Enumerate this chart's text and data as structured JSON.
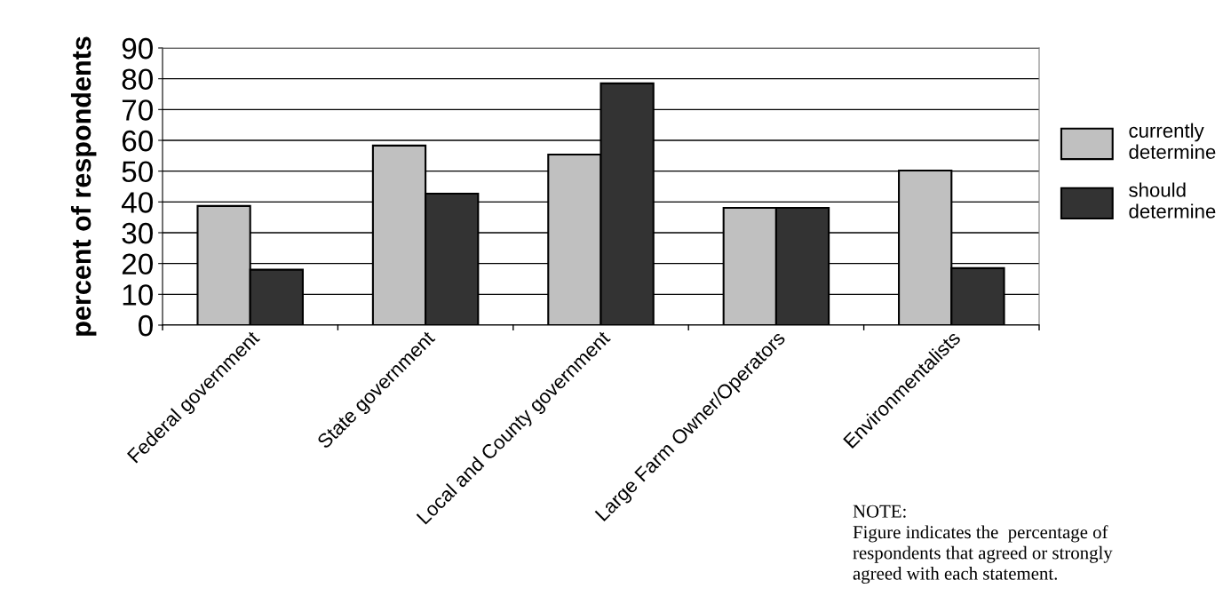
{
  "chart_data": {
    "type": "bar",
    "ylabel": "percent of respondents",
    "categories": [
      "Federal government",
      "State government",
      "Local and County government",
      "Large Farm Owner/Operators",
      "Environmentalists"
    ],
    "series": [
      {
        "name": "currently determine",
        "color": "#c0c0c0",
        "values": [
          38.7,
          58.3,
          55.4,
          38.1,
          50.2
        ]
      },
      {
        "name": "should determine",
        "color": "#333333",
        "values": [
          18.0,
          42.7,
          78.5,
          38.1,
          18.5
        ]
      }
    ],
    "ylim": [
      0,
      90
    ],
    "yticks": [
      0,
      10,
      20,
      30,
      40,
      50,
      60,
      70,
      80,
      90
    ],
    "grid": "y",
    "legend": "right",
    "annotations": [
      "NOTE:\nFigure indicates the  percentage of\nrespondents that agreed or strongly\nagreed with each statement."
    ]
  }
}
